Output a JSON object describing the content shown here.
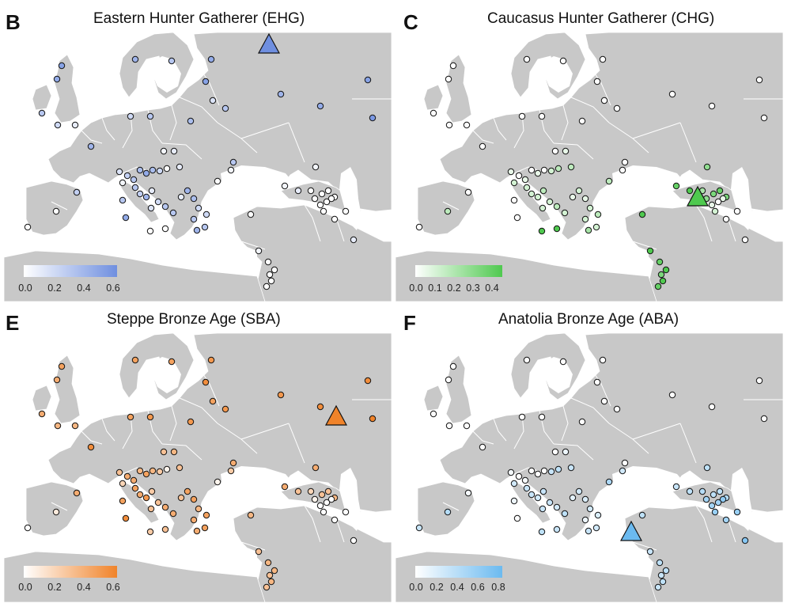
{
  "figure": {
    "panels": [
      {
        "id": "p-b",
        "letter": "B",
        "title": "Eastern Hunter Gatherer (EHG)",
        "color_low": "#ffffff",
        "color_high": "#6f8fe0",
        "legend_ticks": [
          "0.0",
          "0.2",
          "0.4",
          "0.6"
        ],
        "sample_levels": [
          0.5,
          0.45,
          0.3,
          0.2,
          0.1,
          0.4,
          0.3,
          0.45,
          0.5,
          0.15,
          0.3,
          0.4,
          0.45,
          0.5,
          0.55,
          0.2,
          0.3,
          0.35,
          0.4,
          0.05,
          0.1,
          0.15,
          0.25,
          0.3,
          0.35,
          0.45,
          0.35,
          0.2,
          0.0,
          0.1,
          0.05,
          0.3,
          0.25,
          0.4,
          0.1,
          0.2,
          0.3,
          0.15,
          0.3,
          0.1,
          0.4,
          0.35,
          0.2,
          0.3,
          0.4,
          0.3,
          0.2,
          0.0,
          0.05,
          0.3,
          0.25,
          0.0,
          0.0,
          0.3,
          0.45,
          0.0,
          0.0,
          0.05,
          0.0,
          0.0,
          0.0,
          0.0,
          0.0,
          0.0,
          0.05,
          0.1,
          0.05,
          0.0,
          0.0,
          0.0,
          0.0,
          0.0,
          0.0,
          0.0,
          0.0,
          0.0,
          0.1,
          0.0,
          0.0
        ],
        "big_marker": "source-EHG"
      },
      {
        "id": "p-c",
        "letter": "C",
        "title": "Caucasus Hunter Gatherer (CHG)",
        "color_low": "#ffffff",
        "color_high": "#4fc94f",
        "legend_ticks": [
          "0.0",
          "0.1",
          "0.2",
          "0.3",
          "0.4"
        ],
        "sample_levels": [
          0.0,
          0.0,
          0.0,
          0.0,
          0.0,
          0.0,
          0.0,
          0.0,
          0.0,
          0.0,
          0.0,
          0.0,
          0.0,
          0.0,
          0.0,
          0.0,
          0.0,
          0.0,
          0.0,
          0.0,
          0.05,
          0.05,
          0.0,
          0.05,
          0.0,
          0.05,
          0.0,
          0.1,
          0.15,
          0.15,
          0.1,
          0.1,
          0.1,
          0.1,
          0.15,
          0.1,
          0.15,
          0.1,
          0.1,
          0.05,
          0.1,
          0.05,
          0.1,
          0.1,
          0.2,
          0.1,
          0.15,
          0.15,
          0.0,
          0.0,
          0.0,
          0.15,
          0.0,
          0.0,
          0.0,
          0.4,
          0.4,
          0.4,
          0.35,
          0.4,
          0.3,
          0.4,
          0.35,
          0.4,
          0.35,
          0.4,
          0.25,
          0.2,
          0.3,
          0.35,
          0.3,
          0.25,
          0.05,
          0.1,
          0.05,
          0.0,
          0.0,
          0.0,
          0.0
        ],
        "big_marker": "source-CHG"
      },
      {
        "id": "p-e",
        "letter": "E",
        "title": "Steppe Bronze Age (SBA)",
        "color_low": "#ffffff",
        "color_high": "#f0832a",
        "legend_ticks": [
          "0.0",
          "0.2",
          "0.4",
          "0.6"
        ],
        "sample_levels": [
          0.45,
          0.4,
          0.4,
          0.35,
          0.35,
          0.45,
          0.45,
          0.5,
          0.55,
          0.45,
          0.5,
          0.5,
          0.55,
          0.55,
          0.6,
          0.45,
          0.5,
          0.5,
          0.55,
          0.3,
          0.35,
          0.3,
          0.4,
          0.4,
          0.35,
          0.45,
          0.35,
          0.25,
          0.05,
          0.3,
          0.2,
          0.45,
          0.4,
          0.5,
          0.25,
          0.3,
          0.4,
          0.3,
          0.4,
          0.3,
          0.45,
          0.45,
          0.35,
          0.4,
          0.4,
          0.45,
          0.45,
          0.05,
          0.25,
          0.4,
          0.4,
          0.1,
          0.0,
          0.45,
          0.55,
          0.25,
          0.3,
          0.3,
          0.35,
          0.35,
          0.3,
          0.35,
          0.3,
          0.35,
          0.4,
          0.3,
          0.4,
          0.2,
          0.3,
          0.3,
          0.35,
          0.05,
          0.0,
          0.0,
          0.0,
          0.0,
          0.0,
          0.0,
          0.0
        ],
        "big_marker": "source-SBA"
      },
      {
        "id": "p-f",
        "letter": "F",
        "title": "Anatolia Bronze Age (ABA)",
        "color_low": "#ffffff",
        "color_high": "#6bbaf0",
        "legend_ticks": [
          "0.0",
          "0.2",
          "0.4",
          "0.6",
          "0.8"
        ],
        "sample_levels": [
          0.0,
          0.0,
          0.0,
          0.0,
          0.0,
          0.0,
          0.0,
          0.0,
          0.0,
          0.0,
          0.0,
          0.0,
          0.0,
          0.0,
          0.0,
          0.0,
          0.0,
          0.0,
          0.0,
          0.0,
          0.1,
          0.05,
          0.0,
          0.05,
          0.0,
          0.0,
          0.0,
          0.3,
          0.35,
          0.3,
          0.25,
          0.3,
          0.3,
          0.25,
          0.3,
          0.3,
          0.25,
          0.3,
          0.35,
          0.15,
          0.25,
          0.2,
          0.25,
          0.1,
          0.3,
          0.25,
          0.2,
          0.45,
          0.25,
          0.0,
          0.05,
          0.4,
          0.3,
          0.1,
          0.0,
          0.35,
          0.3,
          0.3,
          0.35,
          0.35,
          0.3,
          0.35,
          0.3,
          0.35,
          0.3,
          0.35,
          0.35,
          0.4,
          0.35,
          0.35,
          0.4,
          0.5,
          0.5,
          0.55,
          0.6,
          0.55,
          0.65,
          0.5,
          0.5
        ],
        "big_marker": "source-ABA"
      }
    ]
  }
}
